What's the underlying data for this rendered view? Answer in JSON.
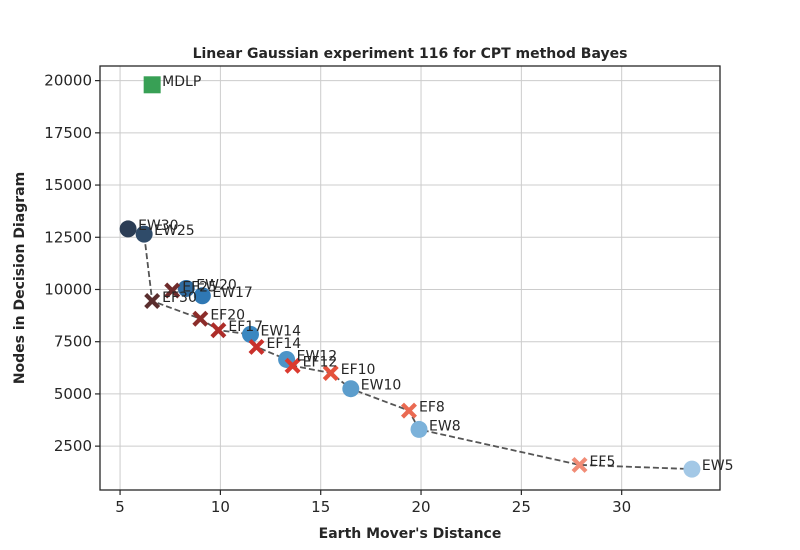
{
  "chart_data": {
    "type": "scatter",
    "title": "Linear Gaussian experiment 116 for CPT method Bayes",
    "xlabel": "Earth Mover's Distance",
    "ylabel": "Nodes in Decision Diagram",
    "xlim": [
      4.0,
      34.9
    ],
    "ylim": [
      400,
      20700
    ],
    "xticks": [
      5,
      10,
      15,
      20,
      25,
      30
    ],
    "yticks": [
      2500,
      5000,
      7500,
      10000,
      12500,
      15000,
      17500,
      20000
    ],
    "grid": true,
    "points": [
      {
        "label": "MDLP",
        "x": 6.6,
        "y": 19800,
        "marker": "square",
        "color": "#38a055"
      },
      {
        "label": "EW30",
        "x": 5.4,
        "y": 12900,
        "marker": "circle",
        "color": "#2b3d55"
      },
      {
        "label": "EW25",
        "x": 6.2,
        "y": 12650,
        "marker": "circle",
        "color": "#2f4b69"
      },
      {
        "label": "EW20",
        "x": 8.3,
        "y": 10050,
        "marker": "circle",
        "color": "#2f6ba0"
      },
      {
        "label": "EW17",
        "x": 9.1,
        "y": 9700,
        "marker": "circle",
        "color": "#2f78b4"
      },
      {
        "label": "EW14",
        "x": 11.5,
        "y": 7850,
        "marker": "circle",
        "color": "#3a87c0"
      },
      {
        "label": "EW12",
        "x": 13.3,
        "y": 6650,
        "marker": "circle",
        "color": "#4d94c7"
      },
      {
        "label": "EW10",
        "x": 16.5,
        "y": 5250,
        "marker": "circle",
        "color": "#5c9dcc"
      },
      {
        "label": "EW8",
        "x": 19.9,
        "y": 3300,
        "marker": "circle",
        "color": "#7cb2da"
      },
      {
        "label": "EW5",
        "x": 33.5,
        "y": 1400,
        "marker": "circle",
        "color": "#a3c8e6"
      },
      {
        "label": "EF30",
        "x": 6.6,
        "y": 9450,
        "marker": "x",
        "color": "#5a2e2e"
      },
      {
        "label": "EF25",
        "x": 7.6,
        "y": 9950,
        "marker": "x",
        "color": "#6f2b2b"
      },
      {
        "label": "EF20",
        "x": 9.0,
        "y": 8600,
        "marker": "x",
        "color": "#8c2d2a"
      },
      {
        "label": "EF17",
        "x": 9.9,
        "y": 8050,
        "marker": "x",
        "color": "#ad2d29"
      },
      {
        "label": "EF14",
        "x": 11.8,
        "y": 7250,
        "marker": "x",
        "color": "#c9302b"
      },
      {
        "label": "EF12",
        "x": 13.6,
        "y": 6350,
        "marker": "x",
        "color": "#db3a2f"
      },
      {
        "label": "EF10",
        "x": 15.5,
        "y": 6000,
        "marker": "x",
        "color": "#e4523c"
      },
      {
        "label": "EF8",
        "x": 19.4,
        "y": 4200,
        "marker": "x",
        "color": "#ea6a52"
      },
      {
        "label": "EF5",
        "x": 27.9,
        "y": 1600,
        "marker": "x",
        "color": "#f18c76"
      }
    ],
    "frontier": [
      {
        "x": 5.4,
        "y": 12900
      },
      {
        "x": 6.2,
        "y": 12650
      },
      {
        "x": 6.6,
        "y": 9450
      },
      {
        "x": 9.0,
        "y": 8600
      },
      {
        "x": 9.9,
        "y": 8050
      },
      {
        "x": 11.5,
        "y": 7850
      },
      {
        "x": 11.8,
        "y": 7250
      },
      {
        "x": 13.3,
        "y": 6650
      },
      {
        "x": 13.6,
        "y": 6350
      },
      {
        "x": 15.5,
        "y": 6000
      },
      {
        "x": 16.5,
        "y": 5250
      },
      {
        "x": 19.4,
        "y": 4200
      },
      {
        "x": 19.9,
        "y": 3300
      },
      {
        "x": 27.9,
        "y": 1600
      },
      {
        "x": 33.5,
        "y": 1400
      }
    ]
  }
}
